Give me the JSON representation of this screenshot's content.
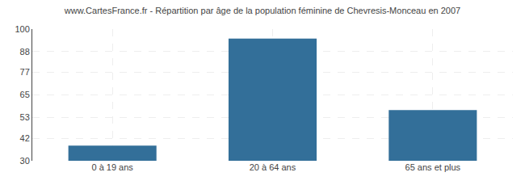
{
  "chart_data": {
    "type": "bar",
    "title": "www.CartesFrance.fr - Répartition par âge de la population féminine de Chevresis-Monceau en 2007",
    "categories": [
      "0 à 19 ans",
      "20 à 64 ans",
      "65 ans et plus"
    ],
    "values": [
      38,
      95,
      57
    ],
    "color": "#336f99",
    "ylim": [
      30,
      100
    ],
    "yticks": [
      30,
      42,
      53,
      65,
      77,
      88,
      100
    ],
    "grid": true
  }
}
